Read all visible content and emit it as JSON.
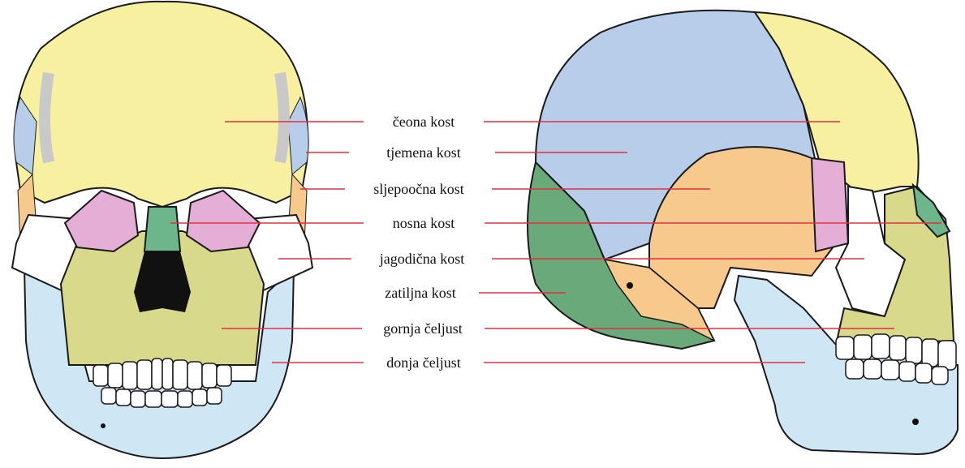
{
  "colors": {
    "frontal": "#f7f0a0",
    "parietal": "#b8cdea",
    "temporal": "#f7c98c",
    "sphenoid": "#e4aed6",
    "nasal": "#6db58a",
    "zygomatic": "#ffffff",
    "occipital": "#6aaa7a",
    "maxilla": "#d9d98c",
    "mandible": "#cfe6f5",
    "bone_gray": "#c9c9c9",
    "leader_line": "#e03040",
    "outline": "#1a1a1a"
  },
  "labels": [
    {
      "id": "frontal",
      "text": "čeona kost"
    },
    {
      "id": "parietal",
      "text": "tjemena kost"
    },
    {
      "id": "temporal",
      "text": "sljepoočna kost"
    },
    {
      "id": "nasal",
      "text": "nosna kost"
    },
    {
      "id": "zygomatic",
      "text": "jagodična kost"
    },
    {
      "id": "occipital",
      "text": "zatiljna kost"
    },
    {
      "id": "maxilla",
      "text": "gornja čeljust"
    },
    {
      "id": "mandible",
      "text": "donja čeljust"
    }
  ]
}
